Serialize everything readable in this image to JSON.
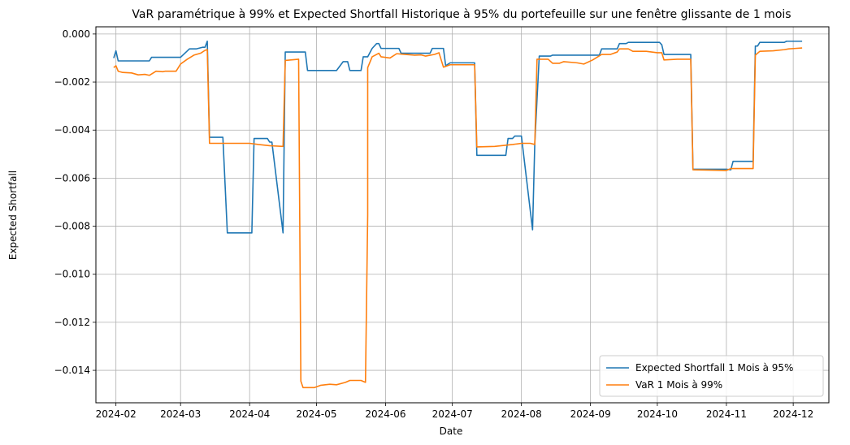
{
  "chart_data": {
    "type": "line",
    "title": "VaR paramétrique à 99% et Expected Shortfall Historique à 95% du portefeuille sur une fenêtre glissante de 1 mois",
    "xlabel": "Date",
    "ylabel": "Expected Shortfall",
    "xlim": [
      "2024-01-23",
      "2024-12-17"
    ],
    "ylim": [
      -0.01535,
      0.0003
    ],
    "x_ticks": [
      "2024-02",
      "2024-03",
      "2024-04",
      "2024-05",
      "2024-06",
      "2024-07",
      "2024-08",
      "2024-09",
      "2024-10",
      "2024-11",
      "2024-12"
    ],
    "x_tick_dates": [
      "2024-02-01",
      "2024-03-01",
      "2024-04-01",
      "2024-05-01",
      "2024-06-01",
      "2024-07-01",
      "2024-08-01",
      "2024-09-01",
      "2024-10-01",
      "2024-11-01",
      "2024-12-01"
    ],
    "y_ticks": [
      0.0,
      -0.002,
      -0.004,
      -0.006,
      -0.008,
      -0.01,
      -0.012,
      -0.014
    ],
    "y_tick_labels": [
      "0.000",
      "−0.002",
      "−0.004",
      "−0.006",
      "−0.008",
      "−0.010",
      "−0.012",
      "−0.014"
    ],
    "grid": true,
    "legend_position": "bottom-right",
    "series": [
      {
        "name": "Expected Shortfall 1 Mois à 95%",
        "color": "#1f77b4",
        "points": [
          [
            "2024-01-31",
            -0.001
          ],
          [
            "2024-02-01",
            -0.0007
          ],
          [
            "2024-02-02",
            -0.00112
          ],
          [
            "2024-02-16",
            -0.00112
          ],
          [
            "2024-02-17",
            -0.00097
          ],
          [
            "2024-03-01",
            -0.00097
          ],
          [
            "2024-03-05",
            -0.00062
          ],
          [
            "2024-03-08",
            -0.00062
          ],
          [
            "2024-03-11",
            -0.00055
          ],
          [
            "2024-03-12",
            -0.00055
          ],
          [
            "2024-03-13",
            -0.0003
          ],
          [
            "2024-03-14",
            -0.0043
          ],
          [
            "2024-03-20",
            -0.0043
          ],
          [
            "2024-03-22",
            -0.00828
          ],
          [
            "2024-04-02",
            -0.00828
          ],
          [
            "2024-04-03",
            -0.00435
          ],
          [
            "2024-04-09",
            -0.00435
          ],
          [
            "2024-04-10",
            -0.0045
          ],
          [
            "2024-04-11",
            -0.0045
          ],
          [
            "2024-04-16",
            -0.00828
          ],
          [
            "2024-04-17",
            -0.00075
          ],
          [
            "2024-04-23",
            -0.00075
          ],
          [
            "2024-04-26",
            -0.00075
          ],
          [
            "2024-04-27",
            -0.00152
          ],
          [
            "2024-05-10",
            -0.00152
          ],
          [
            "2024-05-13",
            -0.00115
          ],
          [
            "2024-05-15",
            -0.00115
          ],
          [
            "2024-05-16",
            -0.00152
          ],
          [
            "2024-05-21",
            -0.00152
          ],
          [
            "2024-05-22",
            -0.00095
          ],
          [
            "2024-05-24",
            -0.00095
          ],
          [
            "2024-05-26",
            -0.0006
          ],
          [
            "2024-05-28",
            -0.0004
          ],
          [
            "2024-05-29",
            -0.0004
          ],
          [
            "2024-05-30",
            -0.0006
          ],
          [
            "2024-06-07",
            -0.0006
          ],
          [
            "2024-06-08",
            -0.0008
          ],
          [
            "2024-06-21",
            -0.0008
          ],
          [
            "2024-06-22",
            -0.0006
          ],
          [
            "2024-06-27",
            -0.0006
          ],
          [
            "2024-06-28",
            -0.00132
          ],
          [
            "2024-06-30",
            -0.0012
          ],
          [
            "2024-07-11",
            -0.0012
          ],
          [
            "2024-07-12",
            -0.00505
          ],
          [
            "2024-07-25",
            -0.00505
          ],
          [
            "2024-07-26",
            -0.00435
          ],
          [
            "2024-07-28",
            -0.00435
          ],
          [
            "2024-07-29",
            -0.00425
          ],
          [
            "2024-08-01",
            -0.00425
          ],
          [
            "2024-08-06",
            -0.00815
          ],
          [
            "2024-08-07",
            -0.00455
          ],
          [
            "2024-08-09",
            -0.00092
          ],
          [
            "2024-08-14",
            -0.00092
          ],
          [
            "2024-08-15",
            -0.00088
          ],
          [
            "2024-09-05",
            -0.00088
          ],
          [
            "2024-09-06",
            -0.00062
          ],
          [
            "2024-09-13",
            -0.00062
          ],
          [
            "2024-09-14",
            -0.0004
          ],
          [
            "2024-09-17",
            -0.0004
          ],
          [
            "2024-09-18",
            -0.00035
          ],
          [
            "2024-10-01",
            -0.00035
          ],
          [
            "2024-10-02",
            -0.00035
          ],
          [
            "2024-10-03",
            -0.00045
          ],
          [
            "2024-10-04",
            -0.00085
          ],
          [
            "2024-10-16",
            -0.00085
          ],
          [
            "2024-10-17",
            -0.00563
          ],
          [
            "2024-11-01",
            -0.00563
          ],
          [
            "2024-11-03",
            -0.00565
          ],
          [
            "2024-11-04",
            -0.0053
          ],
          [
            "2024-11-13",
            -0.0053
          ],
          [
            "2024-11-14",
            -0.0005
          ],
          [
            "2024-11-15",
            -0.0005
          ],
          [
            "2024-11-16",
            -0.00035
          ],
          [
            "2024-11-27",
            -0.00035
          ],
          [
            "2024-11-28",
            -0.0003
          ],
          [
            "2024-12-05",
            -0.0003
          ]
        ]
      },
      {
        "name": "VaR 1 Mois à 99%",
        "color": "#ff7f0e",
        "points": [
          [
            "2024-01-31",
            -0.0014
          ],
          [
            "2024-02-01",
            -0.00132
          ],
          [
            "2024-02-02",
            -0.00155
          ],
          [
            "2024-02-04",
            -0.0016
          ],
          [
            "2024-02-08",
            -0.00162
          ],
          [
            "2024-02-11",
            -0.0017
          ],
          [
            "2024-02-14",
            -0.00168
          ],
          [
            "2024-02-16",
            -0.00172
          ],
          [
            "2024-02-19",
            -0.00155
          ],
          [
            "2024-02-22",
            -0.00157
          ],
          [
            "2024-02-23",
            -0.00155
          ],
          [
            "2024-02-25",
            -0.00155
          ],
          [
            "2024-02-28",
            -0.00155
          ],
          [
            "2024-03-01",
            -0.00125
          ],
          [
            "2024-03-04",
            -0.00105
          ],
          [
            "2024-03-07",
            -0.00088
          ],
          [
            "2024-03-10",
            -0.0008
          ],
          [
            "2024-03-12",
            -0.00068
          ],
          [
            "2024-03-13",
            -0.00065
          ],
          [
            "2024-03-14",
            -0.00455
          ],
          [
            "2024-03-20",
            -0.00455
          ],
          [
            "2024-04-01",
            -0.00455
          ],
          [
            "2024-04-05",
            -0.0046
          ],
          [
            "2024-04-10",
            -0.00465
          ],
          [
            "2024-04-16",
            -0.00468
          ],
          [
            "2024-04-17",
            -0.0011
          ],
          [
            "2024-04-23",
            -0.00105
          ],
          [
            "2024-04-24",
            -0.01445
          ],
          [
            "2024-04-25",
            -0.01472
          ],
          [
            "2024-04-30",
            -0.01472
          ],
          [
            "2024-05-03",
            -0.01462
          ],
          [
            "2024-05-07",
            -0.01458
          ],
          [
            "2024-05-10",
            -0.0146
          ],
          [
            "2024-05-14",
            -0.0145
          ],
          [
            "2024-05-16",
            -0.01442
          ],
          [
            "2024-05-21",
            -0.01442
          ],
          [
            "2024-05-23",
            -0.0145
          ],
          [
            "2024-05-24",
            -0.00755
          ],
          [
            "2024-05-24",
            -0.0014
          ],
          [
            "2024-05-26",
            -0.00095
          ],
          [
            "2024-05-29",
            -0.0008
          ],
          [
            "2024-05-30",
            -0.00095
          ],
          [
            "2024-06-03",
            -0.001
          ],
          [
            "2024-06-06",
            -0.00082
          ],
          [
            "2024-06-10",
            -0.00085
          ],
          [
            "2024-06-14",
            -0.00088
          ],
          [
            "2024-06-17",
            -0.00087
          ],
          [
            "2024-06-19",
            -0.00092
          ],
          [
            "2024-06-23",
            -0.00085
          ],
          [
            "2024-06-25",
            -0.00078
          ],
          [
            "2024-06-27",
            -0.00138
          ],
          [
            "2024-06-30",
            -0.00128
          ],
          [
            "2024-07-11",
            -0.00128
          ],
          [
            "2024-07-12",
            -0.0047
          ],
          [
            "2024-07-20",
            -0.00468
          ],
          [
            "2024-07-28",
            -0.0046
          ],
          [
            "2024-08-01",
            -0.00455
          ],
          [
            "2024-08-05",
            -0.00455
          ],
          [
            "2024-08-07",
            -0.0046
          ],
          [
            "2024-08-08",
            -0.00105
          ],
          [
            "2024-08-13",
            -0.00105
          ],
          [
            "2024-08-15",
            -0.00122
          ],
          [
            "2024-08-18",
            -0.00122
          ],
          [
            "2024-08-20",
            -0.00115
          ],
          [
            "2024-08-26",
            -0.0012
          ],
          [
            "2024-08-29",
            -0.00125
          ],
          [
            "2024-09-02",
            -0.00108
          ],
          [
            "2024-09-06",
            -0.00085
          ],
          [
            "2024-09-10",
            -0.00085
          ],
          [
            "2024-09-13",
            -0.00075
          ],
          [
            "2024-09-14",
            -0.00062
          ],
          [
            "2024-09-18",
            -0.00062
          ],
          [
            "2024-09-20",
            -0.00072
          ],
          [
            "2024-09-26",
            -0.00072
          ],
          [
            "2024-10-01",
            -0.00078
          ],
          [
            "2024-10-03",
            -0.00078
          ],
          [
            "2024-10-04",
            -0.00108
          ],
          [
            "2024-10-10",
            -0.00105
          ],
          [
            "2024-10-16",
            -0.00105
          ],
          [
            "2024-10-17",
            -0.00565
          ],
          [
            "2024-11-01",
            -0.00568
          ],
          [
            "2024-11-03",
            -0.0056
          ],
          [
            "2024-11-13",
            -0.0056
          ],
          [
            "2024-11-14",
            -0.00088
          ],
          [
            "2024-11-16",
            -0.00072
          ],
          [
            "2024-11-22",
            -0.0007
          ],
          [
            "2024-11-27",
            -0.00065
          ],
          [
            "2024-11-29",
            -0.00062
          ],
          [
            "2024-12-02",
            -0.0006
          ],
          [
            "2024-12-05",
            -0.00058
          ]
        ]
      }
    ]
  }
}
